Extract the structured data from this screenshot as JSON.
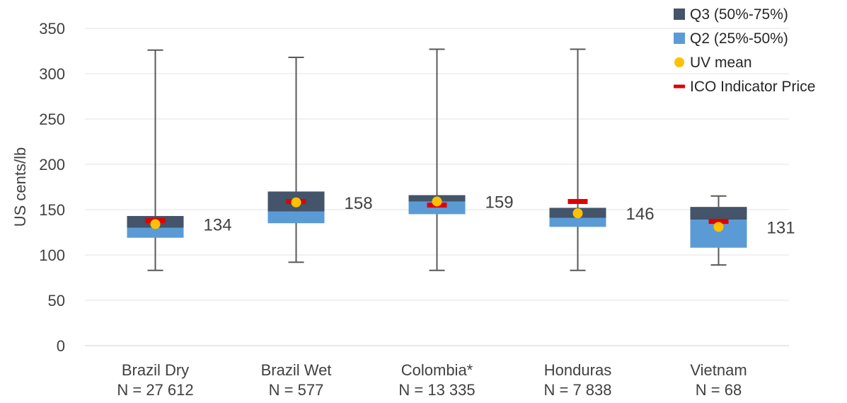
{
  "chart_data": {
    "type": "box",
    "ylabel": "US cents/lb",
    "ylim": [
      0,
      350
    ],
    "yticks": [
      0,
      50,
      100,
      150,
      200,
      250,
      300,
      350
    ],
    "grid": true,
    "legend_position": "top-right",
    "colors": {
      "q3": "#44546a",
      "q2": "#5b9bd5",
      "uv_mean": "#ffc000",
      "ico_price": "#e00000",
      "whisker": "#595959"
    },
    "legend": [
      {
        "key": "q3",
        "label": "Q3 (50%-75%)",
        "marker": "square"
      },
      {
        "key": "q2",
        "label": "Q2 (25%-50%)",
        "marker": "square"
      },
      {
        "key": "uv_mean",
        "label": "UV mean",
        "marker": "circle"
      },
      {
        "key": "ico_price",
        "label": "ICO Indicator Price",
        "marker": "dash"
      }
    ],
    "categories": [
      {
        "name": "Brazil Dry",
        "n_label": "N = 27 612",
        "min": 83,
        "q1": 119,
        "median": 130,
        "q3": 143,
        "max": 326,
        "uv_mean": 134,
        "ico_price": 138,
        "value_label": "134"
      },
      {
        "name": "Brazil Wet",
        "n_label": "N = 577",
        "min": 92,
        "q1": 135,
        "median": 148,
        "q3": 170,
        "max": 318,
        "uv_mean": 158,
        "ico_price": 159,
        "value_label": "158"
      },
      {
        "name": "Colombia*",
        "n_label": "N = 13 335",
        "min": 83,
        "q1": 145,
        "median": 159,
        "q3": 166,
        "max": 327,
        "uv_mean": 159,
        "ico_price": 155,
        "value_label": "159"
      },
      {
        "name": "Honduras",
        "n_label": "N = 7 838",
        "min": 83,
        "q1": 131,
        "median": 141,
        "q3": 152,
        "max": 327,
        "uv_mean": 146,
        "ico_price": 159,
        "value_label": "146"
      },
      {
        "name": "Vietnam",
        "n_label": "N = 68",
        "min": 89,
        "q1": 108,
        "median": 139,
        "q3": 153,
        "max": 165,
        "uv_mean": 131,
        "ico_price": 137,
        "value_label": "131"
      }
    ]
  }
}
